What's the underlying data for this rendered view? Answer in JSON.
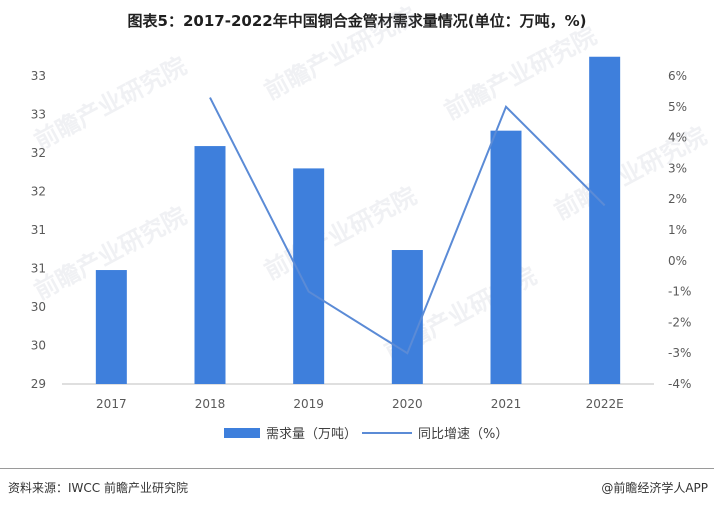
{
  "page": {
    "title": "图表5：2017-2022年中国铜合金管材需求量情况(单位：万吨，%)",
    "source": "资料来源：IWCC 前瞻产业研究院",
    "brand": "@前瞻经济学人APP",
    "watermark": "前瞻产业研究院"
  },
  "chart_data": {
    "type": "bar",
    "categories": [
      "2017",
      "2018",
      "2019",
      "2020",
      "2021",
      "2022E"
    ],
    "series": [
      {
        "name": "需求量（万吨）",
        "type": "bar",
        "axis": "left",
        "color": "#3e7fdc",
        "values": [
          30.48,
          32.09,
          31.8,
          30.74,
          32.29,
          33.25
        ]
      },
      {
        "name": "同比增速（%）",
        "type": "line",
        "axis": "right",
        "color": "#5b8bd6",
        "values": [
          null,
          5.3,
          -1.0,
          -3.0,
          5.0,
          1.8
        ]
      }
    ],
    "left_axis": {
      "ylim": [
        29,
        33
      ],
      "tick_labels": [
        "29",
        "30",
        "30",
        "31",
        "31",
        "32",
        "32",
        "33",
        "33"
      ]
    },
    "right_axis": {
      "ylim": [
        -4,
        6
      ],
      "tick_labels": [
        "-4%",
        "-3%",
        "-2%",
        "-1%",
        "0%",
        "1%",
        "2%",
        "3%",
        "4%",
        "5%",
        "6%"
      ]
    },
    "legend_position": "bottom",
    "grid": false
  }
}
